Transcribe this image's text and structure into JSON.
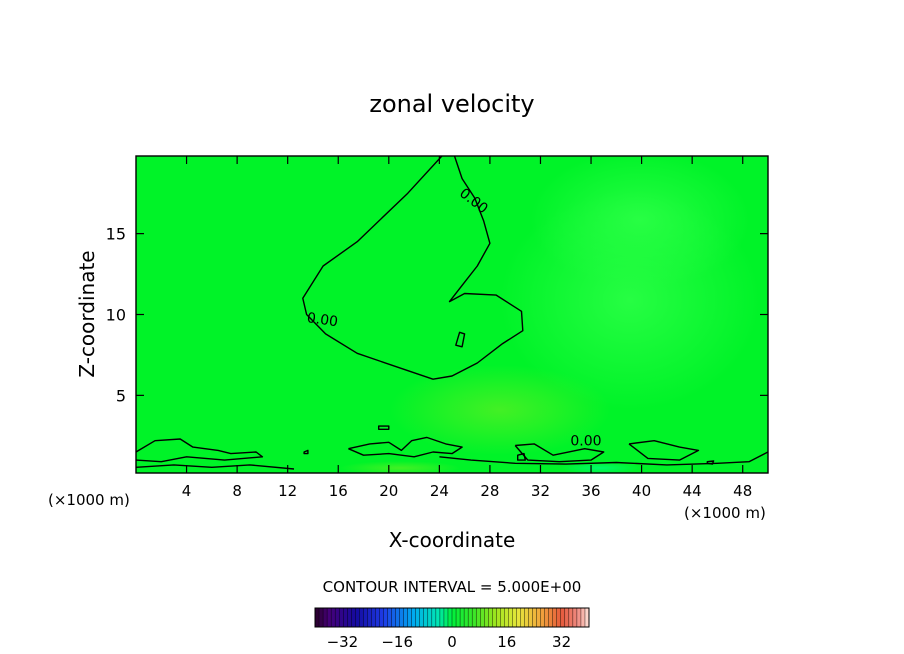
{
  "chart_data": {
    "type": "contour",
    "title": "zonal velocity",
    "xlabel": "X-coordinate",
    "ylabel": "Z-coordinate",
    "x_unit_left": "(×1000 m)",
    "x_unit_right": "(×1000 m)",
    "xlim": [
      0,
      50
    ],
    "ylim": [
      0.2,
      19.8
    ],
    "x_ticks": [
      4,
      8,
      12,
      16,
      20,
      24,
      28,
      32,
      36,
      40,
      44,
      48
    ],
    "y_ticks": [
      5,
      10,
      15
    ],
    "contour_label": "0.00",
    "contour_levels": [
      0
    ],
    "contour_interval_text": "CONTOUR INTERVAL = 5.000E+00",
    "colorbar": {
      "min": -40,
      "max": 40,
      "ticks": [
        -32,
        -16,
        0,
        16,
        32
      ],
      "tick_labels": [
        "−32",
        "−16",
        "0",
        "16",
        "32"
      ]
    },
    "colors": {
      "field_base": "#00f328",
      "field_light": "#1aff3a",
      "field_yellowish": "#66ee22",
      "field_cyan": "#00ff99",
      "contour_line": "#000000"
    },
    "main_contour": [
      [
        24.2,
        19.8
      ],
      [
        21.5,
        17.5
      ],
      [
        17.5,
        14.5
      ],
      [
        14.8,
        13.0
      ],
      [
        13.2,
        11.0
      ],
      [
        13.5,
        10.0
      ],
      [
        15.0,
        8.8
      ],
      [
        17.5,
        7.6
      ],
      [
        20.5,
        6.8
      ],
      [
        23.5,
        6.0
      ],
      [
        25.0,
        6.2
      ],
      [
        27.0,
        7.0
      ],
      [
        29.0,
        8.2
      ],
      [
        30.6,
        9.0
      ],
      [
        30.5,
        10.2
      ],
      [
        28.5,
        11.2
      ],
      [
        26.0,
        11.3
      ],
      [
        24.8,
        10.8
      ],
      [
        26.0,
        12.0
      ],
      [
        27.0,
        13.0
      ],
      [
        28.0,
        14.4
      ],
      [
        27.5,
        15.8
      ],
      [
        26.8,
        17.2
      ],
      [
        25.8,
        18.4
      ],
      [
        25.2,
        19.8
      ]
    ],
    "blob_contour": [
      [
        25.3,
        8.1
      ],
      [
        25.6,
        8.9
      ],
      [
        26.0,
        8.8
      ],
      [
        25.8,
        8.0
      ],
      [
        25.3,
        8.1
      ]
    ],
    "low_contours": [
      [
        [
          0,
          1.5
        ],
        [
          1.5,
          2.2
        ],
        [
          3.5,
          2.3
        ],
        [
          4.5,
          1.8
        ],
        [
          6.5,
          1.6
        ],
        [
          7.5,
          1.4
        ],
        [
          9.5,
          1.5
        ],
        [
          10.0,
          1.2
        ],
        [
          7.0,
          1.0
        ],
        [
          4.0,
          1.2
        ],
        [
          2.0,
          0.9
        ],
        [
          0,
          1.0
        ]
      ],
      [
        [
          0,
          0.55
        ],
        [
          3.0,
          0.7
        ],
        [
          6.0,
          0.55
        ],
        [
          9.0,
          0.7
        ],
        [
          12.5,
          0.45
        ]
      ],
      [
        [
          16.8,
          1.7
        ],
        [
          18.5,
          2.0
        ],
        [
          20.0,
          2.1
        ],
        [
          21.0,
          1.6
        ],
        [
          21.8,
          2.2
        ],
        [
          23.0,
          2.4
        ],
        [
          24.5,
          2.0
        ],
        [
          25.8,
          1.8
        ],
        [
          25.0,
          1.4
        ],
        [
          23.5,
          1.5
        ],
        [
          22.0,
          1.2
        ],
        [
          20.0,
          1.4
        ],
        [
          18.0,
          1.3
        ],
        [
          16.8,
          1.7
        ]
      ],
      [
        [
          30.0,
          1.9
        ],
        [
          31.5,
          2.0
        ],
        [
          33.0,
          1.3
        ],
        [
          35.5,
          1.7
        ],
        [
          37.0,
          1.5
        ],
        [
          36.0,
          1.0
        ],
        [
          33.5,
          0.9
        ],
        [
          31.0,
          1.0
        ],
        [
          30.0,
          1.9
        ]
      ],
      [
        [
          39.0,
          2.0
        ],
        [
          41.0,
          2.2
        ],
        [
          43.0,
          1.8
        ],
        [
          44.5,
          1.6
        ],
        [
          43.0,
          1.0
        ],
        [
          40.5,
          1.1
        ],
        [
          39.0,
          2.0
        ]
      ],
      [
        [
          24.0,
          1.2
        ],
        [
          26.5,
          1.0
        ],
        [
          30.0,
          0.8
        ],
        [
          34.0,
          0.75
        ],
        [
          38.0,
          0.85
        ],
        [
          42.0,
          0.7
        ],
        [
          46.0,
          0.8
        ],
        [
          48.5,
          0.9
        ],
        [
          50.0,
          1.5
        ]
      ]
    ],
    "small_contours": [
      [
        [
          19.2,
          3.1
        ],
        [
          20.0,
          3.1
        ],
        [
          20.0,
          2.9
        ],
        [
          19.2,
          2.9
        ],
        [
          19.2,
          3.1
        ]
      ],
      [
        [
          30.2,
          1.3
        ],
        [
          30.7,
          1.4
        ],
        [
          30.8,
          1.0
        ],
        [
          30.2,
          1.0
        ],
        [
          30.2,
          1.3
        ]
      ],
      [
        [
          45.2,
          0.9
        ],
        [
          45.7,
          0.95
        ],
        [
          45.6,
          0.75
        ],
        [
          45.2,
          0.8
        ],
        [
          45.2,
          0.9
        ]
      ],
      [
        [
          13.3,
          1.5
        ],
        [
          13.6,
          1.6
        ],
        [
          13.6,
          1.4
        ],
        [
          13.3,
          1.4
        ],
        [
          13.3,
          1.5
        ]
      ]
    ],
    "contour_label_positions": [
      {
        "x": 26.5,
        "y": 16.8,
        "angle": 38
      },
      {
        "x": 14.7,
        "y": 9.4,
        "angle": 8
      },
      {
        "x": 35.6,
        "y": 1.9,
        "angle": 0
      }
    ]
  }
}
